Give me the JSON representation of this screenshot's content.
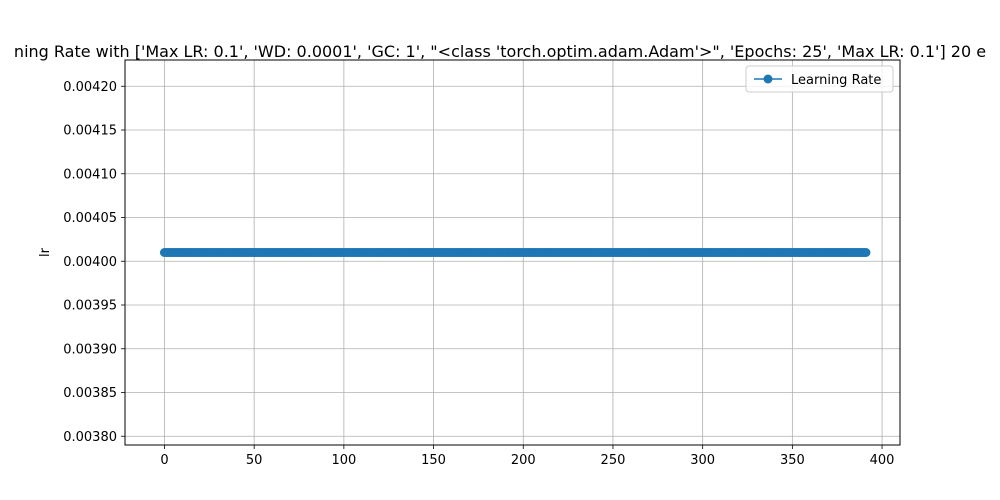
{
  "chart_data": {
    "type": "line",
    "title": "ning Rate with ['Max LR: 0.1', 'WD: 0.0001', 'GC: 1', \"<class 'torch.optim.adam.Adam'>\", 'Epochs: 25', 'Max LR: 0.1'] 20 e",
    "xlabel": "",
    "ylabel": "lr",
    "xlim": [
      -22,
      410
    ],
    "ylim": [
      0.00379,
      0.00423
    ],
    "x_ticks": [
      0,
      50,
      100,
      150,
      200,
      250,
      300,
      350,
      400
    ],
    "x_tick_labels": [
      "0",
      "50",
      "100",
      "150",
      "200",
      "250",
      "300",
      "350",
      "400"
    ],
    "y_ticks": [
      0.0038,
      0.00385,
      0.0039,
      0.00395,
      0.004,
      0.00405,
      0.0041,
      0.00415,
      0.0042
    ],
    "y_tick_labels": [
      "0.00380",
      "0.00385",
      "0.00390",
      "0.00395",
      "0.00400",
      "0.00405",
      "0.00410",
      "0.00415",
      "0.00420"
    ],
    "grid": true,
    "legend_position": "top-right",
    "series": [
      {
        "name": "Learning Rate",
        "color": "#1f77b4",
        "marker": "circle",
        "x_range": {
          "start": 0,
          "end": 391,
          "step": 1
        },
        "constant_value": 0.00401
      }
    ]
  }
}
